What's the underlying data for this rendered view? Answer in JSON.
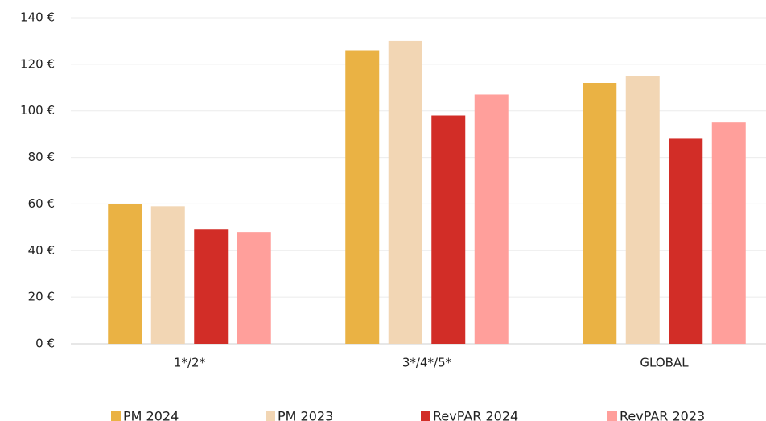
{
  "chart_data": {
    "type": "bar",
    "categories": [
      "1*/2*",
      "3*/4*/5*",
      "GLOBAL"
    ],
    "series": [
      {
        "name": "PM 2024",
        "color": "#EAB244",
        "values": [
          60,
          126,
          112
        ]
      },
      {
        "name": "PM 2023",
        "color": "#F2D6B4",
        "values": [
          59,
          130,
          115
        ]
      },
      {
        "name": "RevPAR 2024",
        "color": "#D22D27",
        "values": [
          49,
          98,
          88
        ]
      },
      {
        "name": "RevPAR 2023",
        "color": "#FF9F9B",
        "values": [
          48,
          107,
          95
        ]
      }
    ],
    "ylim": [
      0,
      140
    ],
    "yticks": [
      {
        "value": 0,
        "label": "0 €"
      },
      {
        "value": 20,
        "label": "20 €"
      },
      {
        "value": 40,
        "label": "40 €"
      },
      {
        "value": 60,
        "label": "60 €"
      },
      {
        "value": 80,
        "label": "80 €"
      },
      {
        "value": 100,
        "label": "100 €"
      },
      {
        "value": 120,
        "label": "120 €"
      },
      {
        "value": 140,
        "label": "140 €"
      }
    ],
    "grid": true,
    "legend": "bottom"
  }
}
